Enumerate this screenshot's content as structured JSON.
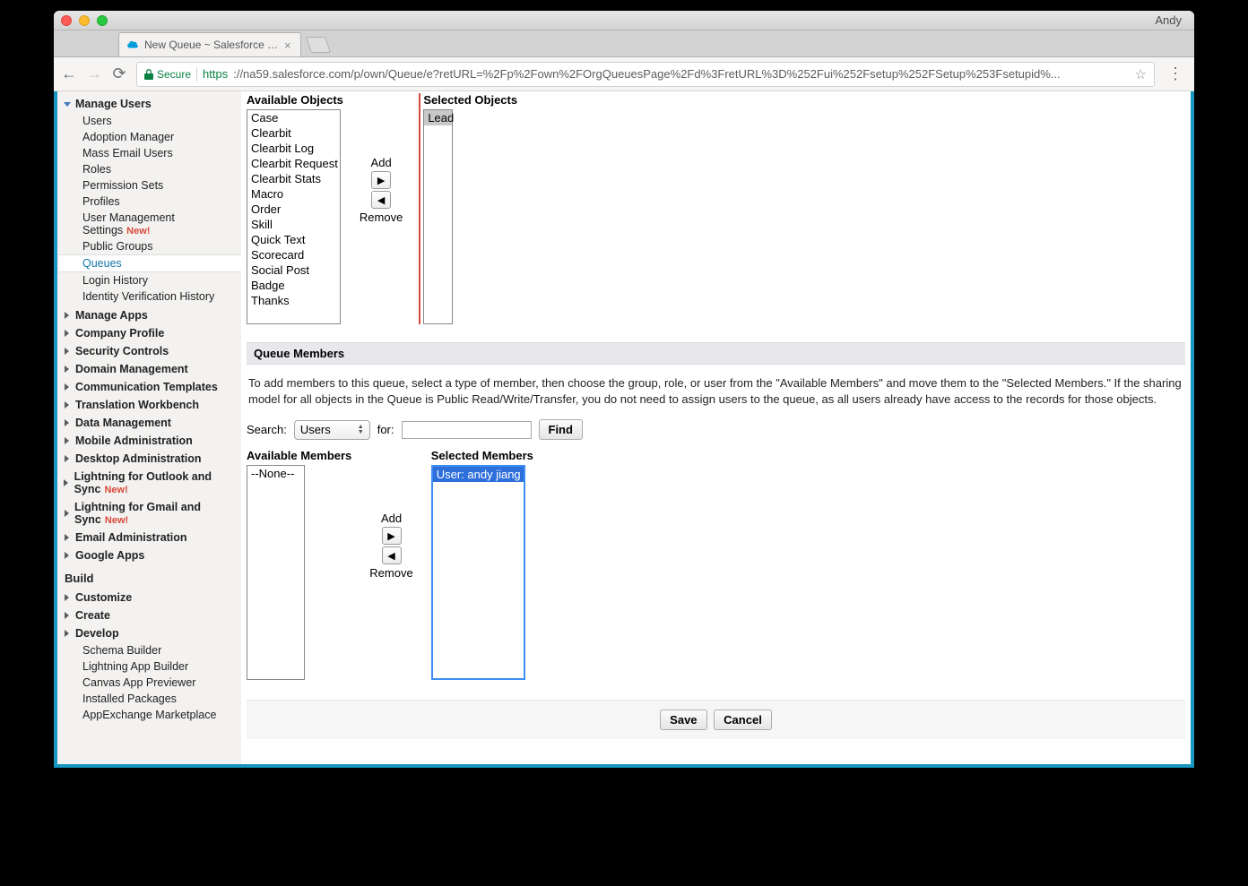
{
  "browser": {
    "profile_name": "Andy",
    "tab_title": "New Queue ~ Salesforce - Pro",
    "secure_label": "Secure",
    "url_protocol": "https",
    "url_rest": "://na59.salesforce.com/p/own/Queue/e?retURL=%2Fp%2Fown%2FOrgQueuesPage%2Fd%3FretURL%3D%252Fui%252Fsetup%252FSetup%253Fsetupid%..."
  },
  "sidebar": {
    "manage_users": {
      "label": "Manage Users",
      "items": {
        "users": "Users",
        "adoption": "Adoption Manager",
        "mass_email": "Mass Email Users",
        "roles": "Roles",
        "perm_sets": "Permission Sets",
        "profiles": "Profiles",
        "ums": "User Management Settings",
        "ums_new": "New!",
        "public_groups": "Public Groups",
        "queues": "Queues",
        "login_history": "Login History",
        "ivh": "Identity Verification History"
      }
    },
    "collapsed1": {
      "manage_apps": "Manage Apps",
      "company_profile": "Company Profile",
      "security_controls": "Security Controls",
      "domain_mgmt": "Domain Management",
      "comm_templates": "Communication Templates",
      "translation": "Translation Workbench",
      "data_mgmt": "Data Management",
      "mobile_admin": "Mobile Administration",
      "desktop_admin": "Desktop Administration",
      "lfo": "Lightning for Outlook and Sync",
      "lfo_new": "New!",
      "lfg": "Lightning for Gmail and Sync",
      "lfg_new": "New!",
      "email_admin": "Email Administration",
      "google_apps": "Google Apps"
    },
    "build_label": "Build",
    "build": {
      "customize": "Customize",
      "create": "Create",
      "develop": "Develop"
    },
    "develop_children": {
      "schema": "Schema Builder",
      "lab": "Lightning App Builder",
      "canvas": "Canvas App Previewer",
      "installed": "Installed Packages",
      "appex": "AppExchange Marketplace"
    }
  },
  "objects": {
    "available_label": "Available Objects",
    "selected_label": "Selected Objects",
    "add_label": "Add",
    "remove_label": "Remove",
    "available": [
      "Case",
      "Clearbit",
      "Clearbit Log",
      "Clearbit Request",
      "Clearbit Stats",
      "Macro",
      "Order",
      "Skill",
      "Quick Text",
      "Scorecard",
      "Social Post",
      "Badge",
      "Thanks"
    ],
    "selected": [
      "Lead"
    ]
  },
  "members": {
    "section_title": "Queue Members",
    "help": "To add members to this queue, select a type of member, then choose the group, role, or user from the \"Available Members\" and move them to the \"Selected Members.\" If the sharing model for all objects in the Queue is Public Read/Write/Transfer, you do not need to assign users to the queue, as all users already have access to the records for those objects.",
    "search_label": "Search:",
    "search_type": "Users",
    "for_label": "for:",
    "find_label": "Find",
    "available_label": "Available Members",
    "selected_label": "Selected Members",
    "add_label": "Add",
    "remove_label": "Remove",
    "available": [
      "--None--"
    ],
    "selected": [
      "User: andy jiang"
    ]
  },
  "footer": {
    "save": "Save",
    "cancel": "Cancel"
  }
}
